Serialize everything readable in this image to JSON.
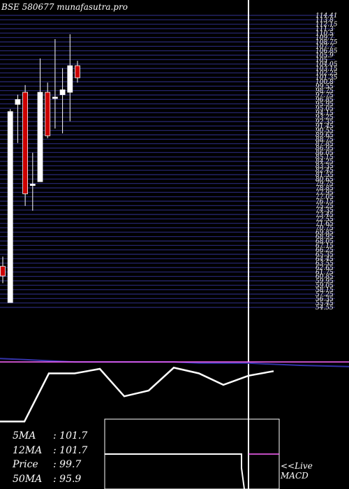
{
  "header": {
    "exchange": "BSE",
    "code": "580677",
    "site": "munafasutra.pro"
  },
  "colors": {
    "background": "#000000",
    "panel": "#000000",
    "grid_line": "#2a2a78",
    "up_candle": "#ffffff",
    "down_candle": "#cc0000",
    "wick": "#ffffff",
    "ma_line": "#ffffff",
    "signal_line": "#3333aa",
    "pink_line": "#ff66ff"
  },
  "chart_data": [
    {
      "type": "candlestick",
      "title": "",
      "price_scale_labels": [
        "114.41",
        "113.8",
        "112.15",
        "111.3",
        "110.5",
        "109.7",
        "108.75",
        "107.7",
        "106.85",
        "105.9",
        "105",
        "104.05",
        "103.15",
        "102.25",
        "101.35",
        "100.8",
        "99.55",
        "98.75",
        "97.75",
        "96.85",
        "95.95",
        "95.05",
        "94.15",
        "93.25",
        "92.35",
        "91.45",
        "90.55",
        "89.65",
        "88.75",
        "87.85",
        "86.95",
        "86.05",
        "85.15",
        "84.25",
        "83.35",
        "82.45",
        "81.55",
        "80.65",
        "79.75",
        "78.85",
        "77.95",
        "77.05",
        "76.15",
        "75.25",
        "74.35",
        "73.45",
        "72.55",
        "71.65",
        "70.75",
        "69.85",
        "68.95",
        "68.05",
        "67.15",
        "66.25",
        "65.35",
        "64.45",
        "63.55",
        "62.65",
        "61.75",
        "60.85",
        "59.95",
        "59.05",
        "58.15",
        "57.25",
        "56.35",
        "55.45",
        "54.55"
      ],
      "ylim": [
        54.0,
        114.41
      ],
      "grid": true,
      "candles": [
        {
          "open": 62.5,
          "high": 64.5,
          "low": 59.0,
          "close": 60.5
        },
        {
          "open": 55.0,
          "high": 95.0,
          "low": 55.0,
          "close": 94.5
        },
        {
          "open": 96.0,
          "high": 98.0,
          "low": 88.0,
          "close": 97.0
        },
        {
          "open": 98.5,
          "high": 100.0,
          "low": 75.0,
          "close": 77.5
        },
        {
          "open": 79.5,
          "high": 86.0,
          "low": 74.0,
          "close": 79.5
        },
        {
          "open": 80.0,
          "high": 105.5,
          "low": 80.0,
          "close": 98.5
        },
        {
          "open": 98.5,
          "high": 100.5,
          "low": 89.0,
          "close": 89.5
        },
        {
          "open": 97.5,
          "high": 109.5,
          "low": 91.0,
          "close": 97.5
        },
        {
          "open": 98.0,
          "high": 103.5,
          "low": 90.0,
          "close": 99.0
        },
        {
          "open": 98.5,
          "high": 110.5,
          "low": 92.5,
          "close": 104.0
        },
        {
          "open": 104.0,
          "high": 105.0,
          "low": 100.5,
          "close": 101.5
        }
      ]
    },
    {
      "type": "line",
      "title": "MACD",
      "series": [
        {
          "name": "",
          "role": "macd",
          "values": [
            -0.52,
            -0.52,
            -0.1,
            -0.1,
            -0.06,
            -0.3,
            -0.25,
            -0.05,
            -0.1,
            -0.2,
            -0.12,
            -0.08,
            -0.03,
            -0.06
          ]
        },
        {
          "name": "",
          "role": "signal",
          "values": [
            0.03,
            0.02,
            0.01,
            0.0,
            0.0,
            0.0,
            0.0,
            0.0,
            -0.01,
            -0.01,
            -0.01,
            -0.02,
            -0.03,
            -0.04
          ]
        },
        {
          "name": "",
          "role": "zero",
          "values": [
            0,
            0,
            0,
            0,
            0,
            0,
            0,
            0,
            0,
            0,
            0,
            0,
            0,
            0
          ]
        }
      ]
    }
  ],
  "moving_averages": [
    {
      "label": "5MA",
      "value": "101.7"
    },
    {
      "label": "12MA",
      "value": "101.7"
    },
    {
      "label": "Price",
      "value": "99.7"
    },
    {
      "label": "50MA",
      "value": "95.9"
    }
  ],
  "live_link": {
    "line1": "<<Live",
    "line2": "MACD"
  }
}
